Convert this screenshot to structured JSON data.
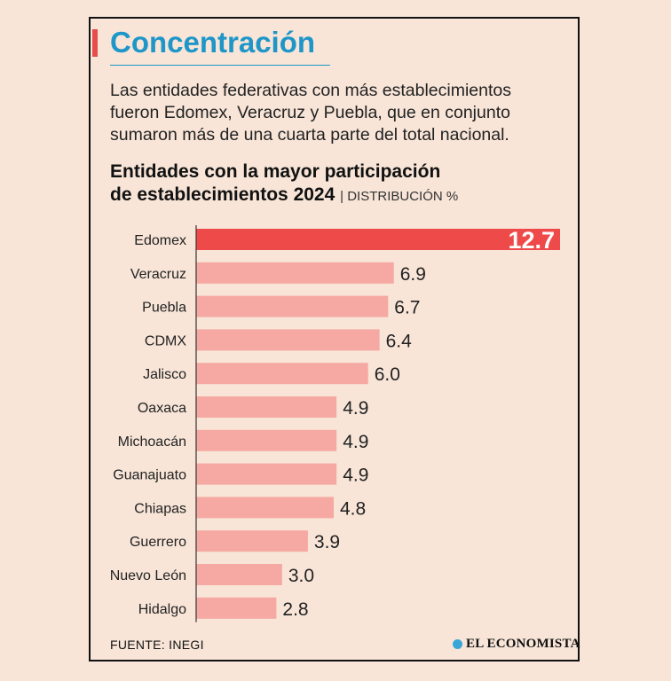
{
  "header": {
    "title": "Concentración",
    "intro_lines": [
      "Las entidades federativas con más establecimientos",
      "fueron Edomex, Veracruz y Puebla, que en conjunto",
      "sumaron más de una cuarta parte del total nacional."
    ],
    "subtitle_lines": [
      "Entidades con la mayor participación",
      "de establecimientos 2024"
    ],
    "unit": "| DISTRIBUCIÓN %"
  },
  "chart_data": {
    "type": "bar",
    "orientation": "horizontal",
    "title": "Entidades con la mayor participación de establecimientos 2024",
    "unit": "DISTRIBUCIÓN %",
    "categories": [
      "Edomex",
      "Veracruz",
      "Puebla",
      "CDMX",
      "Jalisco",
      "Oaxaca",
      "Michoacán",
      "Guanajuato",
      "Chiapas",
      "Guerrero",
      "Nuevo León",
      "Hidalgo"
    ],
    "values": [
      12.7,
      6.9,
      6.7,
      6.4,
      6.0,
      4.9,
      4.9,
      4.9,
      4.8,
      3.9,
      3.0,
      2.8
    ],
    "labels": [
      "12.7",
      "6.9",
      "6.7",
      "6.4",
      "6.0",
      "4.9",
      "4.9",
      "4.9",
      "4.8",
      "3.9",
      "3.0",
      "2.8"
    ],
    "highlight_index": 0,
    "colors": {
      "highlight": "#ef4a4a",
      "bar": "#f6a9a2",
      "axis": "#333333",
      "highlight_label": "#ffffff",
      "label": "#222222"
    },
    "xlim": [
      0,
      12.7
    ],
    "grid": false
  },
  "footer": {
    "source": "FUENTE: INEGI",
    "brand": "EL ECONOMISTA",
    "brand_icon": "el-economista-logo-icon"
  }
}
